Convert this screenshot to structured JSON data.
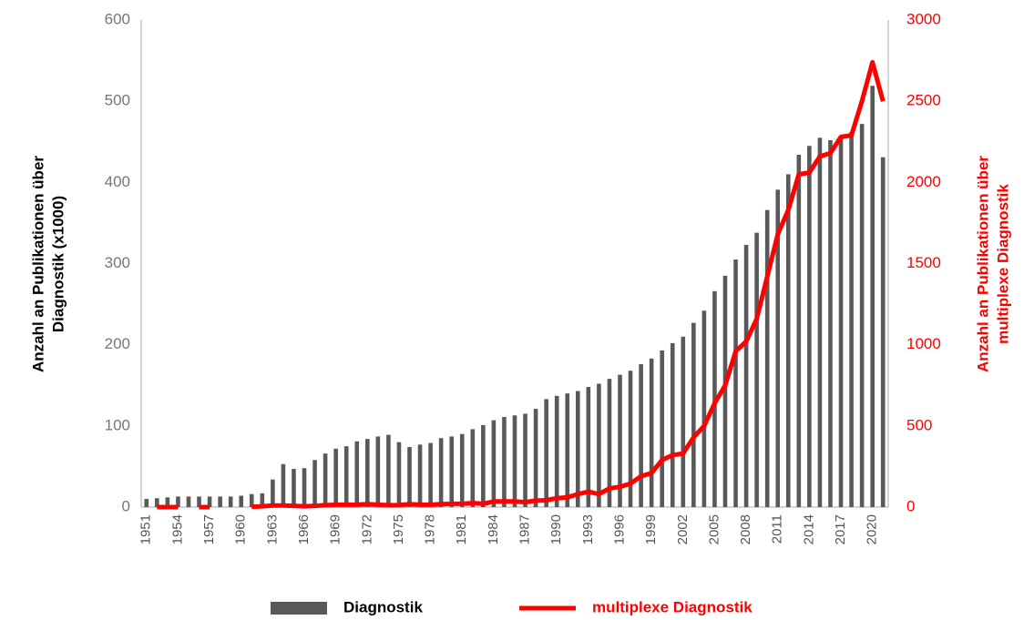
{
  "chart_data": {
    "type": "bar_line",
    "ylabel": [
      "Anzahl an Publikationen über",
      "Diagnostik (x1000)"
    ],
    "y2label": [
      "Anzahl an Publikationen über",
      "multiplexe  Diagnostik"
    ],
    "categories": [
      "1951",
      null,
      null,
      "1954",
      null,
      null,
      "1957",
      null,
      null,
      "1960",
      null,
      null,
      "1963",
      null,
      null,
      "1966",
      null,
      null,
      "1969",
      null,
      null,
      "1972",
      null,
      null,
      "1975",
      null,
      null,
      "1978",
      null,
      null,
      "1981",
      null,
      null,
      "1984",
      null,
      null,
      "1987",
      null,
      null,
      "1990",
      null,
      null,
      "1993",
      null,
      null,
      "1996",
      null,
      null,
      "1999",
      null,
      null,
      "2002",
      null,
      null,
      "2005",
      null,
      null,
      "2008",
      null,
      null,
      "2011",
      null,
      null,
      "2014",
      null,
      null,
      "2017",
      null,
      null,
      "2020",
      null
    ],
    "series": [
      {
        "name": "Diagnostik",
        "color": "#595959",
        "kind": "bar",
        "values": [
          10,
          11,
          12,
          13,
          13,
          13,
          13,
          13,
          13,
          14,
          16,
          17,
          34,
          53,
          47,
          48,
          58,
          66,
          72,
          75,
          81,
          84,
          87,
          89,
          80,
          74,
          77,
          79,
          85,
          87,
          90,
          96,
          101,
          107,
          111,
          113,
          115,
          121,
          133,
          137,
          140,
          143,
          148,
          152,
          158,
          163,
          168,
          176,
          183,
          193,
          202,
          210,
          227,
          242,
          266,
          285,
          305,
          323,
          338,
          366,
          391,
          410,
          434,
          445,
          455,
          452,
          455,
          462,
          472,
          519,
          431
        ]
      },
      {
        "name": "multiplexe Diagnostik",
        "color": "#ff0000",
        "kind": "line",
        "axis": "y2",
        "values": [
          null,
          0,
          0,
          0,
          null,
          0,
          0,
          null,
          null,
          null,
          2,
          5,
          10,
          10,
          8,
          5,
          8,
          12,
          15,
          15,
          15,
          18,
          15,
          12,
          12,
          18,
          15,
          15,
          18,
          20,
          20,
          25,
          20,
          35,
          35,
          35,
          30,
          40,
          42,
          55,
          60,
          80,
          95,
          80,
          115,
          125,
          145,
          190,
          210,
          290,
          320,
          330,
          430,
          500,
          640,
          750,
          960,
          1020,
          1160,
          1420,
          1680,
          1830,
          2050,
          2060,
          2160,
          2180,
          2280,
          2290,
          2500,
          2740,
          2500
        ]
      }
    ],
    "ylim": [
      0,
      600
    ],
    "yticks": [
      0,
      100,
      200,
      300,
      400,
      500,
      600
    ],
    "y2lim": [
      0,
      3000
    ],
    "y2ticks": [
      0,
      500,
      1000,
      1500,
      2000,
      2500,
      3000
    ],
    "legend": "bottom"
  }
}
